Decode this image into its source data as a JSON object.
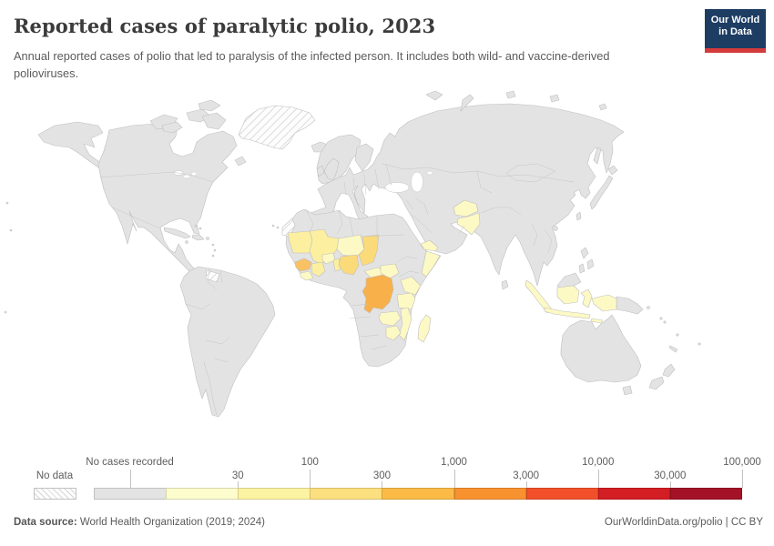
{
  "header": {
    "title": "Reported cases of paralytic polio, 2023",
    "subtitle": "Annual reported cases of polio that led to paralysis of the infected person. It includes both wild- and vaccine-derived polioviruses.",
    "logo": {
      "line1": "Our World",
      "line2": "in Data",
      "bg_color": "#1d3d63",
      "accent_color": "#d43b3b"
    }
  },
  "legend": {
    "no_data_label": "No data",
    "no_cases_label": "No cases recorded",
    "tick_labels": [
      "30",
      "100",
      "300",
      "1,000",
      "3,000",
      "10,000",
      "30,000",
      "100,000"
    ],
    "segments": [
      {
        "label": "No cases recorded",
        "color": "#e3e3e3"
      },
      {
        "label": "1–30",
        "color": "#fdfccd"
      },
      {
        "label": "30–100",
        "color": "#fcf3a2"
      },
      {
        "label": "100–300",
        "color": "#fcdf7e"
      },
      {
        "label": "300–1,000",
        "color": "#fbbb46"
      },
      {
        "label": "1,000–3,000",
        "color": "#f8922f"
      },
      {
        "label": "3,000–10,000",
        "color": "#f2502a"
      },
      {
        "label": "10,000–30,000",
        "color": "#d31e24"
      },
      {
        "label": "30,000–100,000",
        "color": "#a31226"
      }
    ]
  },
  "map": {
    "ocean": "#ffffff",
    "land": "#e3e3e3",
    "border": "#bfbfbf",
    "fills": {
      "cases_1_30": "#fdf9c4",
      "cases_30_100": "#fcf0a0",
      "cases_100_300": "#fbda79",
      "cases_300_1000": "#f8b04b",
      "guinea_shade": "#f8c163"
    }
  },
  "footer": {
    "source_label": "Data source:",
    "source_value": " World Health Organization (2019; 2024)",
    "right_text": "OurWorldinData.org/polio | CC BY"
  },
  "chart_data": {
    "type": "heatmap",
    "subtype": "choropleth-world-map",
    "title": "Reported cases of paralytic polio, 2023",
    "unit": "reported cases of paralytic polio",
    "legend_position": "bottom",
    "color_scale": {
      "no_data": {
        "label": "No data",
        "style": "hatched"
      },
      "bins": [
        {
          "label": "No cases recorded",
          "color": "#e3e3e3"
        },
        {
          "max": 30,
          "color": "#fdfccd"
        },
        {
          "max": 100,
          "color": "#fcf3a2"
        },
        {
          "max": 300,
          "color": "#fcdf7e"
        },
        {
          "max": 1000,
          "color": "#fbbb46"
        },
        {
          "max": 3000,
          "color": "#f8922f"
        },
        {
          "max": 10000,
          "color": "#f2502a"
        },
        {
          "max": 30000,
          "color": "#d31e24"
        },
        {
          "max": 100000,
          "color": "#a31226"
        }
      ]
    },
    "regions": [
      {
        "name": "Democratic Republic of Congo",
        "bin": "300–1,000"
      },
      {
        "name": "Nigeria",
        "bin": "100–300"
      },
      {
        "name": "Chad",
        "bin": "100–300"
      },
      {
        "name": "Guinea",
        "bin": "100–300"
      },
      {
        "name": "Mali",
        "bin": "30–100"
      },
      {
        "name": "Mauritania",
        "bin": "30–100"
      },
      {
        "name": "Côte d'Ivoire",
        "bin": "30–100"
      },
      {
        "name": "Benin",
        "bin": "30–100"
      },
      {
        "name": "Niger",
        "bin": "1–30"
      },
      {
        "name": "Sierra Leone",
        "bin": "1–30"
      },
      {
        "name": "Liberia",
        "bin": "1–30"
      },
      {
        "name": "Burkina Faso",
        "bin": "1–30"
      },
      {
        "name": "Central African Republic",
        "bin": "1–30"
      },
      {
        "name": "South Sudan",
        "bin": "1–30"
      },
      {
        "name": "Somalia",
        "bin": "1–30"
      },
      {
        "name": "Yemen",
        "bin": "1–30"
      },
      {
        "name": "Kenya",
        "bin": "1–30"
      },
      {
        "name": "Tanzania",
        "bin": "1–30"
      },
      {
        "name": "Zambia",
        "bin": "1–30"
      },
      {
        "name": "Zimbabwe",
        "bin": "1–30"
      },
      {
        "name": "Mozambique",
        "bin": "1–30"
      },
      {
        "name": "Madagascar",
        "bin": "1–30"
      },
      {
        "name": "Afghanistan",
        "bin": "1–30"
      },
      {
        "name": "Pakistan",
        "bin": "1–30"
      },
      {
        "name": "Indonesia",
        "bin": "1–30"
      },
      {
        "name": "Greenland",
        "bin": "No data"
      },
      {
        "name": "Western Sahara",
        "bin": "No data"
      },
      {
        "name": "French Guiana",
        "bin": "No data"
      },
      {
        "name": "All other countries",
        "bin": "No cases recorded"
      }
    ]
  }
}
